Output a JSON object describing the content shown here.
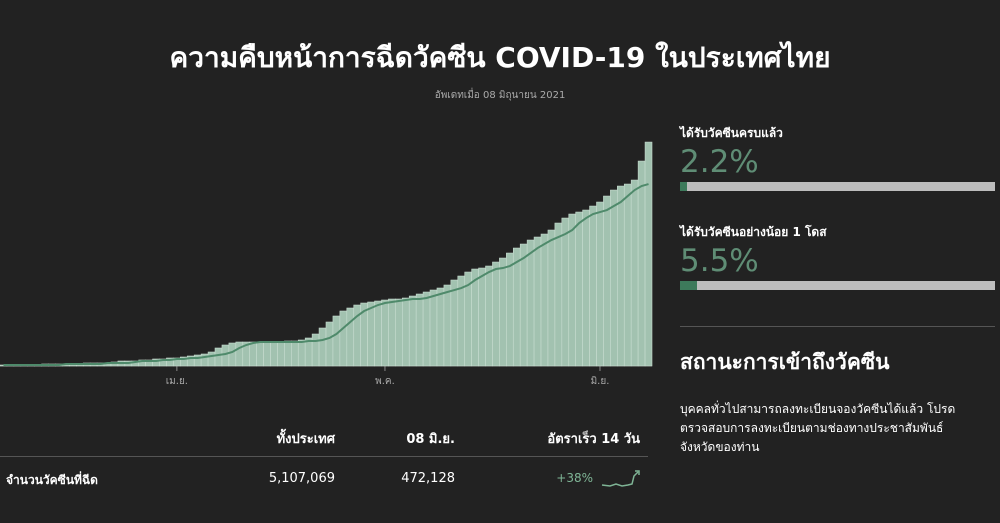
{
  "header": {
    "title": "ความคืบหน้าการฉีดวัคซีน COVID-19 ในประเทศไทย",
    "subtitle": "อัพเดทเมื่อ 08 มิถุนายน 2021"
  },
  "chart_data": {
    "type": "bar",
    "categories": [
      null,
      null,
      null,
      null,
      null,
      null,
      null,
      null,
      null,
      null,
      null,
      null,
      null,
      null,
      null,
      null,
      null,
      null,
      null,
      null,
      null,
      null,
      null,
      null,
      null,
      "เม.ย.",
      null,
      null,
      null,
      null,
      null,
      null,
      null,
      null,
      null,
      null,
      null,
      null,
      null,
      null,
      null,
      null,
      null,
      null,
      null,
      null,
      null,
      null,
      null,
      null,
      null,
      null,
      null,
      null,
      null,
      "พ.ค.",
      null,
      null,
      null,
      null,
      null,
      null,
      null,
      null,
      null,
      null,
      null,
      null,
      null,
      null,
      null,
      null,
      null,
      null,
      null,
      null,
      null,
      null,
      null,
      null,
      null,
      null,
      null,
      null,
      null,
      null,
      "มิ.ย.",
      null,
      null,
      null,
      null,
      null,
      null,
      null
    ],
    "series": [
      {
        "type": "bar",
        "color": "#a2c2b0",
        "values": [
          22800,
          22800,
          22800,
          22800,
          22800,
          22800,
          45600,
          45600,
          45600,
          45600,
          45600,
          45600,
          68400,
          68400,
          68400,
          68400,
          91200,
          114000,
          114000,
          114000,
          136800,
          136800,
          159600,
          159600,
          182400,
          182400,
          205200,
          228000,
          250800,
          273600,
          319200,
          410400,
          478800,
          524400,
          547200,
          547200,
          547200,
          547200,
          547200,
          547200,
          547200,
          570000,
          570000,
          592800,
          638400,
          729600,
          866400,
          1003200,
          1140000,
          1254000,
          1322400,
          1390800,
          1436400,
          1459200,
          1482000,
          1504800,
          1527600,
          1527600,
          1550400,
          1596000,
          1641600,
          1687200,
          1732800,
          1778400,
          1846800,
          1960800,
          2052000,
          2143200,
          2211600,
          2234400,
          2280000,
          2371200,
          2462400,
          2576400,
          2690400,
          2781600,
          2872800,
          2941200,
          3009600,
          3100800,
          3260400,
          3374400,
          3465600,
          3511200,
          3556800,
          3648000,
          3739200,
          3876000,
          4012800,
          4104000,
          4149600,
          4240800,
          4674000,
          5107069
        ]
      },
      {
        "type": "line",
        "color": "#4f8a6b",
        "values": [
          22800,
          22800,
          22800,
          22800,
          22800,
          22800,
          22800,
          22800,
          22800,
          45600,
          45600,
          45600,
          45600,
          45600,
          45600,
          68400,
          68400,
          68400,
          68400,
          91200,
          114000,
          114000,
          114000,
          136800,
          136800,
          159600,
          159600,
          182400,
          182400,
          205200,
          228000,
          250800,
          273600,
          319200,
          410400,
          478800,
          524400,
          547200,
          547200,
          547200,
          547200,
          547200,
          547200,
          547200,
          570000,
          570000,
          592800,
          638400,
          729600,
          866400,
          1003200,
          1140000,
          1254000,
          1322400,
          1390800,
          1436400,
          1459200,
          1482000,
          1504800,
          1527600,
          1527600,
          1550400,
          1596000,
          1641600,
          1687200,
          1732800,
          1778400,
          1846800,
          1960800,
          2052000,
          2143200,
          2211600,
          2234400,
          2280000,
          2371200,
          2462400,
          2576400,
          2690400,
          2781600,
          2872800,
          2941200,
          3009600,
          3100800,
          3260400,
          3374400,
          3465600,
          3511200,
          3556800,
          3648000,
          3739200,
          3876000,
          4012800,
          4104000,
          4149600
        ]
      }
    ],
    "ylim": [
      0,
      5200000
    ]
  },
  "stats": [
    {
      "label": "ได้รับวัคซีนครบแล้ว",
      "value": 2.2,
      "value_label": "2.2%",
      "color": "#3d7a5b"
    },
    {
      "label": "ได้รับวัคซีนอย่างน้อย 1 โดส",
      "value": 5.5,
      "value_label": "5.5%",
      "color": "#3d7a5b"
    }
  ],
  "status": {
    "heading": "สถานะการเข้าถึงวัคซีน",
    "lines": [
      "บุคคลทั่วไปสามารถลงทะเบียนจองวัคซีนได้แล้ว โปรด",
      "ตรวจสอบการลงทะเบียนตามช่องทางประชาสัมพันธ์",
      "จังหวัดของท่าน"
    ]
  },
  "table": {
    "header": [
      "ทั้งประเทศ",
      "08 มิ.ย.",
      "อัตราเร็ว 14 วัน"
    ],
    "rows": [
      [
        "จำนวนวัคซีนที่ฉีด",
        "5,107,069",
        "472,128",
        "+38%"
      ]
    ]
  }
}
